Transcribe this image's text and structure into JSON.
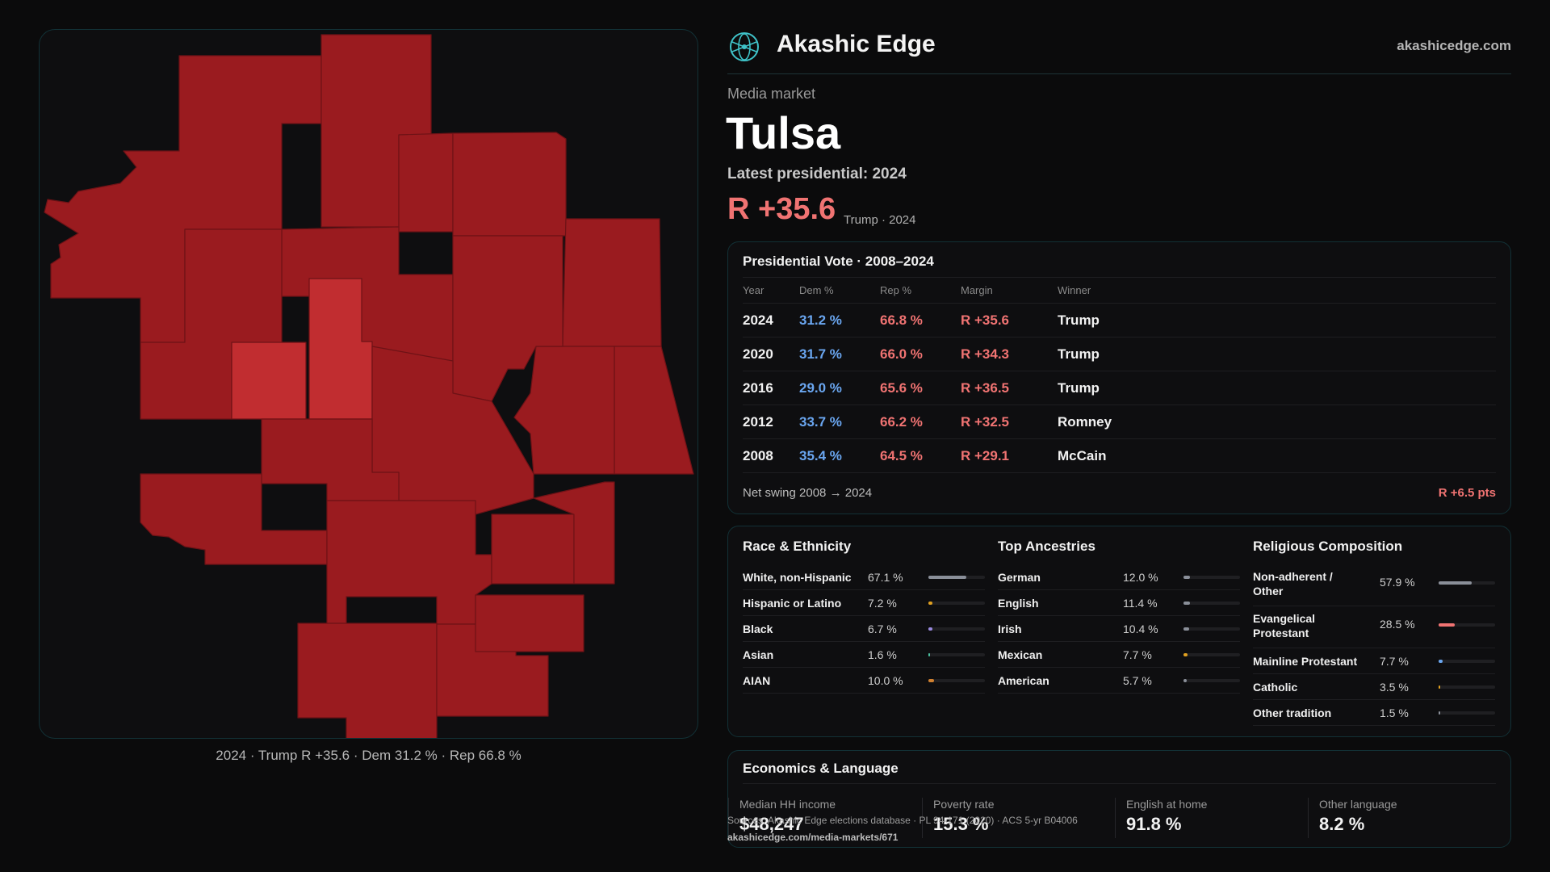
{
  "map_caption": "2024 · Trump R +35.6 · Dem 31.2 % · Rep 66.8 %",
  "header": {
    "brand": "Akashic Edge",
    "site": "akashicedge.com",
    "logo_icon": "atom-globe-icon"
  },
  "market": {
    "kicker": "Media market",
    "name": "Tulsa",
    "latest_label": "Latest presidential: 2024",
    "margin": "R +35.6",
    "margin_sub": "Trump · 2024"
  },
  "colors": {
    "rep": "#f07372",
    "dem": "#6aa6f0",
    "county_dark": "#9a1b1f",
    "county_light": "#c12d30"
  },
  "vote": {
    "title": "Presidential Vote · 2008–2024",
    "headers": [
      "Year",
      "Dem %",
      "Rep %",
      "Margin",
      "Winner"
    ],
    "rows": [
      {
        "year": "2024",
        "dem": "31.2 %",
        "rep": "66.8 %",
        "margin": "R +35.6",
        "winner": "Trump"
      },
      {
        "year": "2020",
        "dem": "31.7 %",
        "rep": "66.0 %",
        "margin": "R +34.3",
        "winner": "Trump"
      },
      {
        "year": "2016",
        "dem": "29.0 %",
        "rep": "65.6 %",
        "margin": "R +36.5",
        "winner": "Trump"
      },
      {
        "year": "2012",
        "dem": "33.7 %",
        "rep": "66.2 %",
        "margin": "R +32.5",
        "winner": "Romney"
      },
      {
        "year": "2008",
        "dem": "35.4 %",
        "rep": "64.5 %",
        "margin": "R +29.1",
        "winner": "McCain"
      }
    ],
    "swing_label": "Net swing 2008 → 2024",
    "swing_value": "R +6.5 pts"
  },
  "race": {
    "title": "Race & Ethnicity",
    "items": [
      {
        "label": "White, non-Hispanic",
        "value": "67.1 %",
        "pct": 67.1,
        "color": "#8a8f99"
      },
      {
        "label": "Hispanic or Latino",
        "value": "7.2 %",
        "pct": 7.2,
        "color": "#e0a020"
      },
      {
        "label": "Black",
        "value": "6.7 %",
        "pct": 6.7,
        "color": "#9a8ae0"
      },
      {
        "label": "Asian",
        "value": "1.6 %",
        "pct": 1.6,
        "color": "#4cc0a0"
      },
      {
        "label": "AIAN",
        "value": "10.0 %",
        "pct": 10.0,
        "color": "#d08030"
      }
    ]
  },
  "ancestry": {
    "title": "Top Ancestries",
    "items": [
      {
        "label": "German",
        "value": "12.0 %",
        "pct": 12.0,
        "color": "#8a8f99"
      },
      {
        "label": "English",
        "value": "11.4 %",
        "pct": 11.4,
        "color": "#8a8f99"
      },
      {
        "label": "Irish",
        "value": "10.4 %",
        "pct": 10.4,
        "color": "#8a8f99"
      },
      {
        "label": "Mexican",
        "value": "7.7 %",
        "pct": 7.7,
        "color": "#e0a020"
      },
      {
        "label": "American",
        "value": "5.7 %",
        "pct": 5.7,
        "color": "#8a8f99"
      }
    ]
  },
  "religion": {
    "title": "Religious Composition",
    "items": [
      {
        "label": "Non-adherent / Other",
        "value": "57.9 %",
        "pct": 57.9,
        "color": "#8a8f99"
      },
      {
        "label": "Evangelical Protestant",
        "value": "28.5 %",
        "pct": 28.5,
        "color": "#f07372"
      },
      {
        "label": "Mainline Protestant",
        "value": "7.7 %",
        "pct": 7.7,
        "color": "#6aa6f0"
      },
      {
        "label": "Catholic",
        "value": "3.5 %",
        "pct": 3.5,
        "color": "#e0a020"
      },
      {
        "label": "Other tradition",
        "value": "1.5 %",
        "pct": 1.5,
        "color": "#8a8f99"
      }
    ]
  },
  "econ": {
    "title": "Economics & Language",
    "stats": [
      {
        "label": "Median HH income",
        "value": "$48,247"
      },
      {
        "label": "Poverty rate",
        "value": "15.3 %"
      },
      {
        "label": "English at home",
        "value": "91.8 %"
      },
      {
        "label": "Other language",
        "value": "8.2 %"
      }
    ]
  },
  "sources": {
    "text": "Sources: Akashic Edge elections database · PL 94-171 (2020) · ACS 5-yr B04006",
    "url": "akashicedge.com/media-markets/671"
  }
}
